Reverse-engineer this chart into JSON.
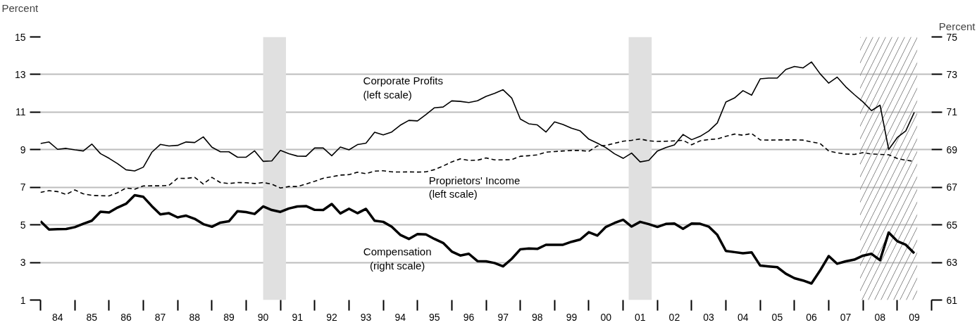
{
  "chart_data": {
    "type": "line",
    "ylabel": "Percent",
    "y2label": "Percent",
    "x": [
      "1984-01",
      "1984-04",
      "1984-07",
      "1984-10",
      "1985-01",
      "1985-04",
      "1985-07",
      "1985-10",
      "1986-01",
      "1986-04",
      "1986-07",
      "1986-10",
      "1987-01",
      "1987-04",
      "1987-07",
      "1987-10",
      "1988-01",
      "1988-04",
      "1988-07",
      "1988-10",
      "1989-01",
      "1989-04",
      "1989-07",
      "1989-10",
      "1990-01",
      "1990-04",
      "1990-07",
      "1990-10",
      "1991-01",
      "1991-04",
      "1991-07",
      "1991-10",
      "1992-01",
      "1992-04",
      "1992-07",
      "1992-10",
      "1993-01",
      "1993-04",
      "1993-07",
      "1993-10",
      "1994-01",
      "1994-04",
      "1994-07",
      "1994-10",
      "1995-01",
      "1995-04",
      "1995-07",
      "1995-10",
      "1996-01",
      "1996-04",
      "1996-07",
      "1996-10",
      "1997-01",
      "1997-04",
      "1997-07",
      "1997-10",
      "1998-01",
      "1998-04",
      "1998-07",
      "1998-10",
      "1999-01",
      "1999-04",
      "1999-07",
      "1999-10",
      "2000-01",
      "2000-04",
      "2000-07",
      "2000-10",
      "2001-01",
      "2001-04",
      "2001-07",
      "2001-10",
      "2002-01",
      "2002-04",
      "2002-07",
      "2002-10",
      "2003-01",
      "2003-04",
      "2003-07",
      "2003-10",
      "2004-01",
      "2004-04",
      "2004-07",
      "2004-10",
      "2005-01",
      "2005-04",
      "2005-07",
      "2005-10",
      "2006-01",
      "2006-04",
      "2006-07",
      "2006-10",
      "2007-01",
      "2007-04",
      "2007-07",
      "2007-10",
      "2008-01",
      "2008-04",
      "2008-07",
      "2008-10",
      "2009-01",
      "2009-04",
      "2009-07"
    ],
    "series": [
      {
        "name": "Corporate Profits\n(left scale)",
        "color": "#000000",
        "line_style": "solid",
        "values": [
          9.33,
          9.41,
          9.02,
          9.07,
          8.99,
          8.93,
          9.3,
          8.79,
          8.54,
          8.26,
          7.93,
          7.87,
          8.07,
          8.86,
          9.28,
          9.2,
          9.23,
          9.41,
          9.38,
          9.68,
          9.13,
          8.89,
          8.89,
          8.6,
          8.6,
          8.94,
          8.38,
          8.4,
          8.96,
          8.79,
          8.66,
          8.65,
          9.09,
          9.09,
          8.68,
          9.14,
          8.99,
          9.27,
          9.35,
          9.93,
          9.79,
          9.94,
          10.3,
          10.56,
          10.53,
          10.87,
          11.23,
          11.27,
          11.6,
          11.57,
          11.51,
          11.6,
          11.84,
          12.0,
          12.19,
          11.75,
          10.63,
          10.38,
          10.32,
          9.94,
          10.48,
          10.34,
          10.14,
          10.0,
          9.56,
          9.35,
          9.11,
          8.78,
          8.54,
          8.82,
          8.35,
          8.43,
          8.93,
          9.11,
          9.25,
          9.81,
          9.53,
          9.71,
          9.99,
          10.42,
          11.54,
          11.75,
          12.14,
          11.9,
          12.77,
          12.81,
          12.81,
          13.27,
          13.43,
          13.35,
          13.67,
          13.04,
          12.54,
          12.86,
          12.35,
          11.93,
          11.54,
          11.08,
          11.37,
          9.01,
          9.65,
          10.0,
          10.99
        ]
      },
      {
        "name": "Proprietors' Income\n(left scale)",
        "color": "#000000",
        "line_style": "dashed",
        "values": [
          6.73,
          6.82,
          6.77,
          6.62,
          6.86,
          6.65,
          6.57,
          6.55,
          6.54,
          6.71,
          6.96,
          6.9,
          7.07,
          7.08,
          7.08,
          7.1,
          7.48,
          7.47,
          7.53,
          7.17,
          7.53,
          7.25,
          7.2,
          7.25,
          7.24,
          7.2,
          7.25,
          7.17,
          6.96,
          7.04,
          7.04,
          7.17,
          7.32,
          7.48,
          7.56,
          7.65,
          7.67,
          7.8,
          7.72,
          7.86,
          7.88,
          7.82,
          7.81,
          7.82,
          7.81,
          7.82,
          7.94,
          8.13,
          8.35,
          8.51,
          8.43,
          8.44,
          8.56,
          8.46,
          8.46,
          8.47,
          8.65,
          8.68,
          8.72,
          8.87,
          8.9,
          8.93,
          8.96,
          8.96,
          8.91,
          9.2,
          9.23,
          9.34,
          9.45,
          9.5,
          9.57,
          9.47,
          9.44,
          9.45,
          9.47,
          9.5,
          9.26,
          9.47,
          9.54,
          9.57,
          9.71,
          9.83,
          9.77,
          9.86,
          9.52,
          9.51,
          9.52,
          9.52,
          9.52,
          9.51,
          9.41,
          9.33,
          8.93,
          8.83,
          8.77,
          8.75,
          8.84,
          8.77,
          8.75,
          8.73,
          8.53,
          8.44,
          8.38
        ]
      },
      {
        "name": "Compensation\n(right scale)",
        "color": "#000000",
        "line_style": "solid",
        "axis": "y2",
        "values": [
          65.19,
          64.75,
          64.77,
          64.78,
          64.88,
          65.06,
          65.22,
          65.7,
          65.66,
          65.92,
          66.12,
          66.58,
          66.49,
          66.0,
          65.56,
          65.62,
          65.4,
          65.49,
          65.32,
          65.04,
          64.9,
          65.12,
          65.19,
          65.73,
          65.68,
          65.58,
          65.98,
          65.79,
          65.69,
          65.87,
          65.98,
          66.0,
          65.8,
          65.79,
          66.11,
          65.61,
          65.86,
          65.62,
          65.85,
          65.22,
          65.16,
          64.9,
          64.47,
          64.25,
          64.51,
          64.49,
          64.25,
          64.04,
          63.58,
          63.37,
          63.46,
          63.07,
          63.06,
          62.97,
          62.79,
          63.19,
          63.7,
          63.74,
          63.72,
          63.94,
          63.94,
          63.94,
          64.1,
          64.22,
          64.61,
          64.43,
          64.89,
          65.1,
          65.27,
          64.91,
          65.16,
          65.04,
          64.89,
          65.05,
          65.07,
          64.79,
          65.07,
          65.06,
          64.91,
          64.47,
          63.61,
          63.55,
          63.49,
          63.54,
          62.83,
          62.79,
          62.75,
          62.4,
          62.16,
          62.04,
          61.88,
          62.57,
          63.34,
          62.93,
          63.06,
          63.15,
          63.36,
          63.46,
          63.12,
          64.59,
          64.13,
          63.94,
          63.49
        ]
      }
    ],
    "xlim": [
      "1984-01",
      "2010-01"
    ],
    "xticks": [
      {
        "value": "1984",
        "label": null
      },
      {
        "value": "1984-07",
        "label": "84"
      },
      {
        "value": "1985",
        "label": null
      },
      {
        "value": "1985-07",
        "label": "85"
      },
      {
        "value": "1986",
        "label": null
      },
      {
        "value": "1986-07",
        "label": "86"
      },
      {
        "value": "1987",
        "label": null
      },
      {
        "value": "1987-07",
        "label": "87"
      },
      {
        "value": "1988",
        "label": null
      },
      {
        "value": "1988-07",
        "label": "88"
      },
      {
        "value": "1989",
        "label": null
      },
      {
        "value": "1989-07",
        "label": "89"
      },
      {
        "value": "1990",
        "label": null
      },
      {
        "value": "1990-07",
        "label": "90"
      },
      {
        "value": "1991",
        "label": null
      },
      {
        "value": "1991-07",
        "label": "91"
      },
      {
        "value": "1992",
        "label": null
      },
      {
        "value": "1992-07",
        "label": "92"
      },
      {
        "value": "1993",
        "label": null
      },
      {
        "value": "1993-07",
        "label": "93"
      },
      {
        "value": "1994",
        "label": null
      },
      {
        "value": "1994-07",
        "label": "94"
      },
      {
        "value": "1995",
        "label": null
      },
      {
        "value": "1995-07",
        "label": "95"
      },
      {
        "value": "1996",
        "label": null
      },
      {
        "value": "1996-07",
        "label": "96"
      },
      {
        "value": "1997",
        "label": null
      },
      {
        "value": "1997-07",
        "label": "97"
      },
      {
        "value": "1998",
        "label": null
      },
      {
        "value": "1998-07",
        "label": "98"
      },
      {
        "value": "1999",
        "label": null
      },
      {
        "value": "1999-07",
        "label": "99"
      },
      {
        "value": "2000",
        "label": null
      },
      {
        "value": "2000-07",
        "label": "00"
      },
      {
        "value": "2001",
        "label": null
      },
      {
        "value": "2001-07",
        "label": "01"
      },
      {
        "value": "2002",
        "label": null
      },
      {
        "value": "2002-07",
        "label": "02"
      },
      {
        "value": "2003",
        "label": null
      },
      {
        "value": "2003-07",
        "label": "03"
      },
      {
        "value": "2004",
        "label": null
      },
      {
        "value": "2004-07",
        "label": "04"
      },
      {
        "value": "2005",
        "label": null
      },
      {
        "value": "2005-07",
        "label": "05"
      },
      {
        "value": "2006",
        "label": null
      },
      {
        "value": "2006-07",
        "label": "06"
      },
      {
        "value": "2007",
        "label": null
      },
      {
        "value": "2007-07",
        "label": "07"
      },
      {
        "value": "2008",
        "label": null
      },
      {
        "value": "2008-07",
        "label": "08"
      },
      {
        "value": "2009",
        "label": null
      },
      {
        "value": "2009-07",
        "label": "09"
      },
      {
        "value": "2010",
        "label": null
      }
    ],
    "ylim": [
      1,
      15
    ],
    "yticks": [
      1,
      3,
      5,
      7,
      9,
      11,
      13,
      15
    ],
    "y2lim": [
      61,
      75
    ],
    "y2ticks": [
      61,
      63,
      65,
      67,
      69,
      71,
      73,
      75
    ],
    "bands": [
      {
        "axis": "x",
        "from": "1990-07",
        "to": "1991-03",
        "color": "#e0e0e0"
      },
      {
        "axis": "x",
        "from": "2001-03",
        "to": "2001-11",
        "color": "#e0e0e0"
      },
      {
        "axis": "x",
        "from": "2007-12",
        "to": "2009-08"
      }
    ],
    "grid": "y"
  }
}
